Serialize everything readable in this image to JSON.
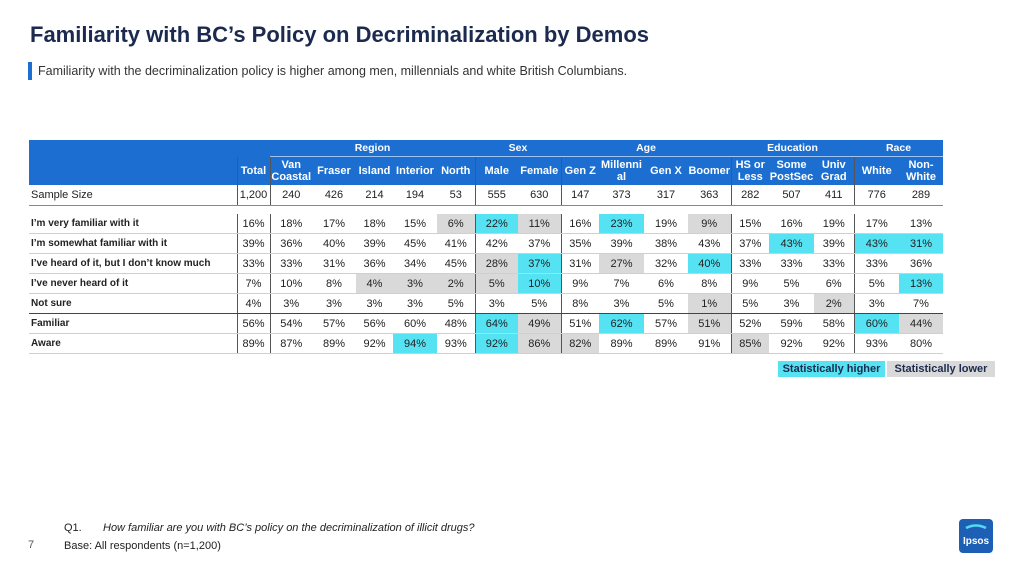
{
  "title": "Familiarity with BC’s Policy on Decriminalization by Demos",
  "subtitle": "Familiarity with the decriminalization policy is higher among men, millennials and white British Columbians.",
  "table": {
    "groups": [
      "Region",
      "Sex",
      "Age",
      "Education",
      "Race"
    ],
    "columns": [
      "Total",
      "Van Coastal",
      "Fraser",
      "Island",
      "Interior",
      "North",
      "Male",
      "Female",
      "Gen Z",
      "Millennial",
      "Gen X",
      "Boomer",
      "HS or Less",
      "Some PostSec",
      "Univ Grad",
      "White",
      "Non-White"
    ],
    "sample": {
      "label": "Sample Size",
      "values": [
        "1,200",
        "240",
        "426",
        "214",
        "194",
        "53",
        "555",
        "630",
        "147",
        "373",
        "317",
        "363",
        "282",
        "507",
        "411",
        "776",
        "289"
      ]
    },
    "rows": [
      {
        "label": "I’m very familiar with it",
        "values": [
          "16%",
          "18%",
          "17%",
          "18%",
          "15%",
          "6%",
          "22%",
          "11%",
          "16%",
          "23%",
          "19%",
          "9%",
          "15%",
          "16%",
          "19%",
          "17%",
          "13%"
        ]
      },
      {
        "label": "I’m somewhat familiar with it",
        "values": [
          "39%",
          "36%",
          "40%",
          "39%",
          "45%",
          "41%",
          "42%",
          "37%",
          "35%",
          "39%",
          "38%",
          "43%",
          "37%",
          "43%",
          "39%",
          "43%",
          "31%"
        ]
      },
      {
        "label": "I’ve heard of it, but I don’t know much",
        "values": [
          "33%",
          "33%",
          "31%",
          "36%",
          "34%",
          "45%",
          "28%",
          "37%",
          "31%",
          "27%",
          "32%",
          "40%",
          "33%",
          "33%",
          "33%",
          "33%",
          "36%"
        ]
      },
      {
        "label": "I’ve never heard of it",
        "values": [
          "7%",
          "10%",
          "8%",
          "4%",
          "3%",
          "2%",
          "5%",
          "10%",
          "9%",
          "7%",
          "6%",
          "8%",
          "9%",
          "5%",
          "6%",
          "5%",
          "13%"
        ]
      },
      {
        "label": "Not sure",
        "values": [
          "4%",
          "3%",
          "3%",
          "3%",
          "3%",
          "5%",
          "3%",
          "5%",
          "8%",
          "3%",
          "5%",
          "1%",
          "5%",
          "3%",
          "2%",
          "3%",
          "7%"
        ]
      },
      {
        "label": "Familiar",
        "values": [
          "56%",
          "54%",
          "57%",
          "56%",
          "60%",
          "48%",
          "64%",
          "49%",
          "51%",
          "62%",
          "57%",
          "51%",
          "52%",
          "59%",
          "58%",
          "60%",
          "44%"
        ]
      },
      {
        "label": "Aware",
        "values": [
          "89%",
          "87%",
          "89%",
          "92%",
          "94%",
          "93%",
          "92%",
          "86%",
          "82%",
          "89%",
          "89%",
          "91%",
          "85%",
          "92%",
          "92%",
          "93%",
          "80%"
        ]
      }
    ]
  },
  "legend": {
    "higher": "Statistically higher",
    "lower": "Statistically lower",
    "higher_color": "#55e2f3",
    "lower_color": "#d9d9d9"
  },
  "question": {
    "number": "Q1.",
    "text": "How familiar are you with BC’s policy on the decriminalization of illicit drugs?"
  },
  "base": "Base: All respondents (n=1,200)",
  "page_number": "7",
  "logo_text": "Ipsos",
  "colors": {
    "header_blue": "#1c6fd0",
    "title_navy": "#1b2a4e"
  }
}
